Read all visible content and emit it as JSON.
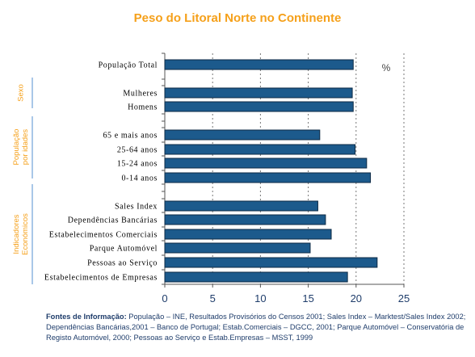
{
  "chart_data": {
    "type": "bar",
    "orientation": "horizontal",
    "title": "Peso do Litoral Norte no Continente",
    "unit_label": "%",
    "xlim": [
      0,
      25
    ],
    "x_ticks": [
      "0",
      "5",
      "10",
      "15",
      "20",
      "25"
    ],
    "grid": true,
    "bar_color": "#1C5A8C",
    "categories": [
      "População Total",
      "Mulheres",
      "Homens",
      "65 e mais anos",
      "25-64 anos",
      "15-24 anos",
      "0-14 anos",
      "Sales Index",
      "Dependências Bancárias",
      "Estabelecimentos Comerciais",
      "Parque Automóvel",
      "Pessoas ao Serviço",
      "Estabelecimentos de Empresas"
    ],
    "values": [
      19.7,
      19.6,
      19.7,
      16.2,
      19.9,
      21.1,
      21.5,
      16.0,
      16.8,
      17.4,
      15.2,
      22.2,
      19.1
    ],
    "groups": [
      {
        "label_lines": [
          "Sexo"
        ]
      },
      {
        "label_lines": [
          "População",
          "por idades"
        ]
      },
      {
        "label_lines": [
          "Indicadores",
          "Económicos"
        ]
      }
    ]
  },
  "source": {
    "heading": "Fontes de Informação:",
    "text": "População – INE, Resultados Provisórios do Censos 2001; Sales Index – Marktest/Sales Index 2002; Dependências Bancárias,2001 – Banco de Portugal; Estab.Comerciais – DGCC, 2001; Parque Automóvel – Conservatória de Registo Automóvel, 2000; Pessoas ao Serviço e Estab.Empresas – MSST, 1999"
  }
}
